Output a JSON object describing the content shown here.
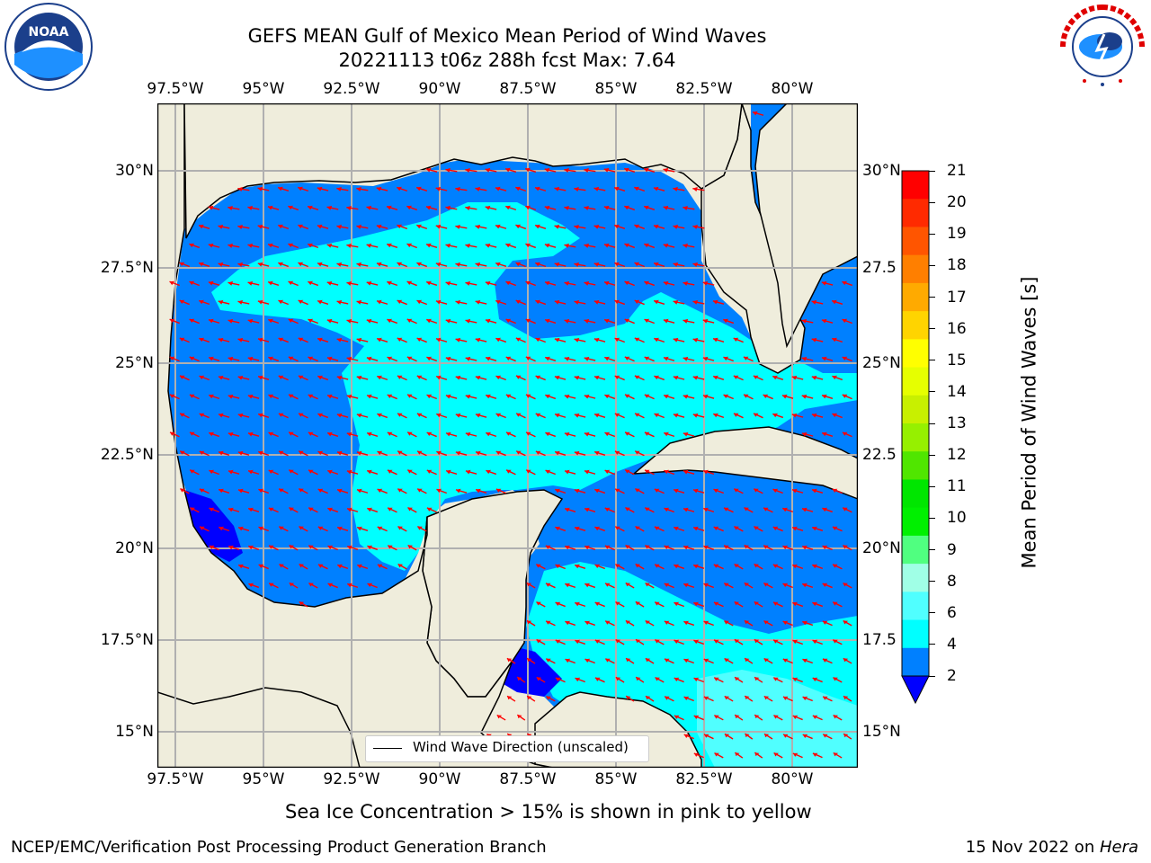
{
  "title": {
    "line1": "GEFS MEAN Gulf of Mexico Mean Period of Wind Waves",
    "line2": "20221113 t06z 288h fcst   Max: 7.64"
  },
  "logos": {
    "left": {
      "icon": "noaa-logo",
      "text": "NOAA"
    },
    "right": {
      "icon": "national-weather-service-logo",
      "text": "NATIONAL WEATHER SERVICE"
    }
  },
  "map": {
    "lon_ticks_top": [
      "97.5°W",
      "95°W",
      "92.5°W",
      "90°W",
      "87.5°W",
      "85°W",
      "82.5°W",
      "80°W"
    ],
    "lon_ticks_bottom": [
      "97.5°W",
      "95°W",
      "92.5°W",
      "90°W",
      "87.5°W",
      "85°W",
      "82.5°W",
      "80°W"
    ],
    "lat_ticks_left": [
      "30°N",
      "27.5°N",
      "25°N",
      "22.5°N",
      "20°N",
      "17.5°N",
      "15°N"
    ],
    "lat_ticks_right": [
      "30°N",
      "27.5",
      "25°N",
      "22.5",
      "20°N",
      "17.5",
      "15°N"
    ],
    "legend": "Wind Wave Direction (unscaled)",
    "land_color": "#efeddc",
    "arrow_color": "#ff0000"
  },
  "colorbar": {
    "label": "Mean Period of Wind Waves [s]",
    "ticks": [
      "21",
      "20",
      "19",
      "18",
      "17",
      "16",
      "15",
      "14",
      "13",
      "12",
      "11",
      "10",
      "9",
      "8",
      "6",
      "4",
      "2"
    ],
    "colors_top_to_bottom": [
      "#ff0000",
      "#ff2a00",
      "#ff5500",
      "#ff7f00",
      "#ffaa00",
      "#ffd400",
      "#ffff00",
      "#e6ff00",
      "#c8f000",
      "#96f000",
      "#50e600",
      "#00e600",
      "#00f000",
      "#50ff80",
      "#a0ffe6",
      "#50ffff",
      "#00ffff",
      "#0080ff"
    ],
    "under_color": "#0000ff"
  },
  "note": "Sea Ice Concentration > 15% is shown in pink to yellow",
  "footer": {
    "left": "NCEP/EMC/Verification Post Processing Product Generation Branch",
    "right_prefix": "15 Nov 2022 on ",
    "right_host": "Hera"
  },
  "chart_data": {
    "type": "heatmap",
    "variable": "Mean Period of Wind Waves [s]",
    "max": 7.64,
    "lon_range": [
      -98.0,
      -78.2
    ],
    "lat_range": [
      14.0,
      31.8
    ],
    "color_levels": [
      2,
      4,
      6,
      8,
      9,
      10,
      11,
      12,
      13,
      14,
      15,
      16,
      17,
      18,
      19,
      20,
      21
    ]
  }
}
